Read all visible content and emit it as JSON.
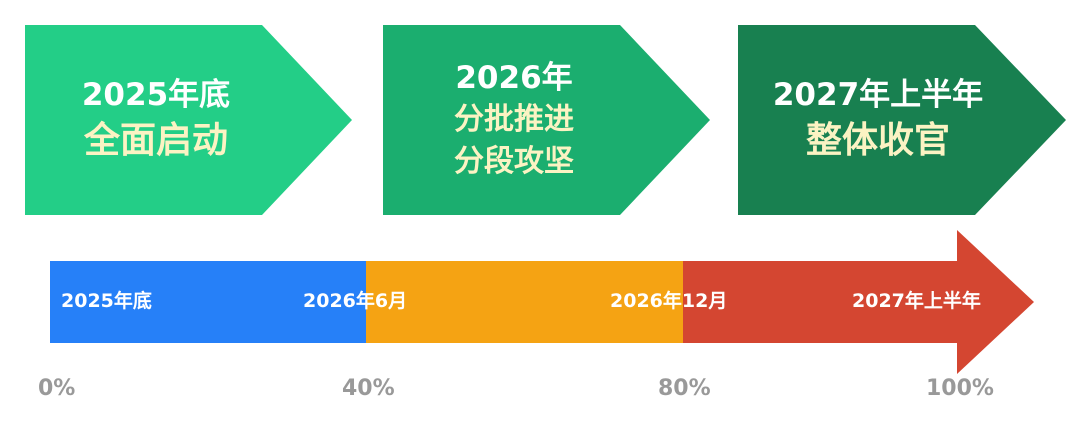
{
  "phases": [
    {
      "year": "2025年底",
      "lines": [
        "全面启动"
      ],
      "color": "#23CE87"
    },
    {
      "year": "2026年",
      "lines": [
        "分批推进",
        "分段攻坚"
      ],
      "color": "#1BAE6F"
    },
    {
      "year": "2027年上半年",
      "lines": [
        "整体收官"
      ],
      "color": "#188050"
    }
  ],
  "timeline": {
    "segments": [
      {
        "from": 0,
        "to": 40,
        "color": "#2680F8"
      },
      {
        "from": 40,
        "to": 80,
        "color": "#F5A313"
      },
      {
        "from": 80,
        "to": 100,
        "color": "#D44631"
      }
    ],
    "labels": [
      "2025年底",
      "2026年6月",
      "2026年12月",
      "2027年上半年"
    ],
    "percents": [
      "0%",
      "40%",
      "80%",
      "100%"
    ]
  }
}
